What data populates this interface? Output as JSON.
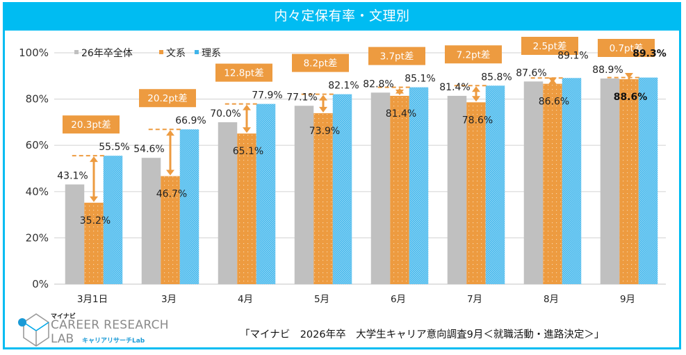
{
  "title": "内々定保有率・文理別",
  "source": "「マイナビ　2026年卒　大学生キャリア意向調査9月＜就職活動・進路決定＞」",
  "logo": {
    "kana": "マイナビ",
    "line1": "CAREER RESEARCH",
    "line2": "LAB",
    "sub": "キャリアリサーチLab"
  },
  "chart_data": {
    "type": "bar",
    "title": "内々定保有率・文理別",
    "xlabel": "",
    "ylabel": "",
    "ylim": [
      0,
      100
    ],
    "yticks": [
      "0%",
      "20%",
      "40%",
      "60%",
      "80%",
      "100%"
    ],
    "grid": true,
    "legend_position": "top-left",
    "categories": [
      "3月1日",
      "3月",
      "4月",
      "5月",
      "6月",
      "7月",
      "8月",
      "9月"
    ],
    "series": [
      {
        "name": "26年卒全体",
        "color": "#c0c0c0",
        "values": [
          43.1,
          54.6,
          70.0,
          77.1,
          82.8,
          81.4,
          87.6,
          88.9
        ],
        "labels": [
          "43.1%",
          "54.6%",
          "70.0%",
          "77.1%",
          "82.8%",
          "81.4%",
          "87.6%",
          "88.9%"
        ]
      },
      {
        "name": "文系",
        "color": "#ed9b40",
        "values": [
          35.2,
          46.7,
          65.1,
          73.9,
          81.4,
          78.6,
          86.6,
          88.6
        ],
        "labels": [
          "35.2%",
          "46.7%",
          "65.1%",
          "73.9%",
          "81.4%",
          "78.6%",
          "86.6%",
          "88.6%"
        ]
      },
      {
        "name": "理系",
        "color": "#3fb4ea",
        "values": [
          55.5,
          66.9,
          77.9,
          82.1,
          85.1,
          85.8,
          89.1,
          89.3
        ],
        "labels": [
          "55.5%",
          "66.9%",
          "77.9%",
          "82.1%",
          "85.1%",
          "85.8%",
          "89.1%",
          "89.3%"
        ]
      }
    ],
    "annotations": [
      "20.3pt差",
      "20.2pt差",
      "12.8pt差",
      "8.2pt差",
      "3.7pt差",
      "7.2pt差",
      "2.5pt差",
      "0.7pt差"
    ],
    "diff_color": "#ed9b40"
  }
}
